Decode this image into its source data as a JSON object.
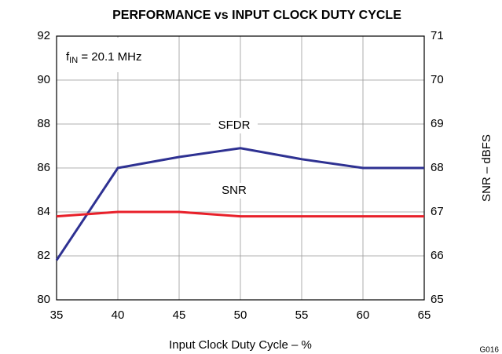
{
  "chart_data": {
    "type": "line",
    "title": "PERFORMANCE vs INPUT CLOCK DUTY CYCLE",
    "xlabel": "Input Clock Duty Cycle – %",
    "y2label": "SNR – dBFS",
    "figure_id": "G016",
    "annotation": {
      "base": "f",
      "sub": "IN",
      "rest": " = 20.1 MHz"
    },
    "x": [
      35,
      40,
      45,
      50,
      55,
      60,
      65
    ],
    "xlim": [
      35,
      65
    ],
    "xticks": [
      35,
      40,
      45,
      50,
      55,
      60,
      65
    ],
    "ylim": [
      80,
      92
    ],
    "yticks": [
      80,
      82,
      84,
      86,
      88,
      90,
      92
    ],
    "y2lim": [
      65,
      71
    ],
    "y2ticks": [
      65,
      66,
      67,
      68,
      69,
      70,
      71
    ],
    "grid": true,
    "series": [
      {
        "name": "SFDR",
        "color": "#2e3192",
        "values": [
          81.8,
          86,
          86.5,
          86.9,
          86.4,
          86,
          86
        ]
      },
      {
        "name": "SNR",
        "color": "#e8202a",
        "axis": "y2",
        "values": [
          66.9,
          67,
          67,
          66.9,
          66.9,
          66.9,
          66.9
        ]
      }
    ]
  }
}
